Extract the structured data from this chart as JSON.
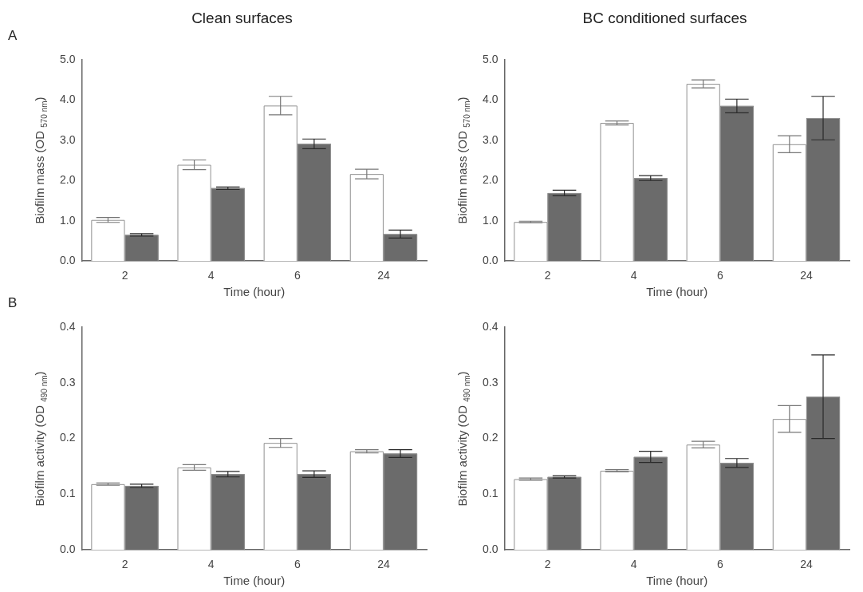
{
  "chart_data": [
    {
      "type": "bar",
      "title": "Clean surfaces",
      "xlabel": "Time (hour)",
      "ylabel": "Biofilm mass (OD $_{570 nm}$)",
      "annotations": [
        "A"
      ],
      "categories": [
        "2",
        "4",
        "6",
        "24"
      ],
      "series": [
        {
          "color": "#ffffff",
          "values": [
            1.02,
            2.39,
            3.86,
            2.16
          ],
          "errors": [
            0.06,
            0.12,
            0.23,
            0.12
          ]
        },
        {
          "color": "#6b6b6b",
          "values": [
            0.65,
            1.81,
            2.91,
            0.67
          ],
          "errors": [
            0.03,
            0.03,
            0.12,
            0.1
          ]
        }
      ],
      "ylim": [
        0,
        5
      ],
      "yticks": [
        {
          "value": 0,
          "label": "0.0"
        },
        {
          "value": 1,
          "label": "1.0"
        },
        {
          "value": 2,
          "label": "2.0"
        },
        {
          "value": 3,
          "label": "3.0"
        },
        {
          "value": 4,
          "label": "4.0"
        },
        {
          "value": 5,
          "label": "5.0"
        }
      ],
      "grid": false,
      "legend": false
    },
    {
      "type": "bar",
      "title": "BC conditioned surfaces",
      "xlabel": "Time (hour)",
      "ylabel": "Biofilm mass (OD $_{570 nm}$)",
      "categories": [
        "2",
        "4",
        "6",
        "24"
      ],
      "series": [
        {
          "color": "#ffffff",
          "values": [
            0.97,
            3.43,
            4.4,
            2.9
          ],
          "errors": [
            0.02,
            0.05,
            0.1,
            0.21
          ]
        },
        {
          "color": "#6b6b6b",
          "values": [
            1.69,
            2.06,
            3.85,
            3.55
          ],
          "errors": [
            0.07,
            0.06,
            0.17,
            0.54
          ]
        }
      ],
      "ylim": [
        0,
        5
      ],
      "yticks": [
        {
          "value": 0,
          "label": "0.0"
        },
        {
          "value": 1,
          "label": "1.0"
        },
        {
          "value": 2,
          "label": "2.0"
        },
        {
          "value": 3,
          "label": "3.0"
        },
        {
          "value": 4,
          "label": "4.0"
        },
        {
          "value": 5,
          "label": "5.0"
        }
      ],
      "grid": false,
      "legend": false
    },
    {
      "type": "bar",
      "xlabel": "Time (hour)",
      "ylabel": "Biofilm activity (OD $_{490 nm}$)",
      "annotations": [
        "B"
      ],
      "categories": [
        "2",
        "4",
        "6",
        "24"
      ],
      "series": [
        {
          "color": "#ffffff",
          "values": [
            0.118,
            0.148,
            0.192,
            0.177
          ],
          "errors": [
            0.002,
            0.005,
            0.008,
            0.003
          ]
        },
        {
          "color": "#6b6b6b",
          "values": [
            0.115,
            0.136,
            0.136,
            0.173
          ],
          "errors": [
            0.003,
            0.005,
            0.006,
            0.007
          ]
        }
      ],
      "ylim": [
        0,
        0.4
      ],
      "yticks": [
        {
          "value": 0,
          "label": "0.0"
        },
        0.1,
        0.2,
        0.3,
        0.4
      ],
      "grid": false,
      "legend": false
    },
    {
      "type": "bar",
      "xlabel": "Time (hour)",
      "ylabel": "Biofilm activity (OD $_{490 nm}$)",
      "categories": [
        "2",
        "4",
        "6",
        "24"
      ],
      "series": [
        {
          "color": "#ffffff",
          "values": [
            0.127,
            0.142,
            0.189,
            0.235
          ],
          "errors": [
            0.002,
            0.002,
            0.006,
            0.024
          ]
        },
        {
          "color": "#6b6b6b",
          "values": [
            0.131,
            0.167,
            0.156,
            0.275
          ],
          "errors": [
            0.002,
            0.01,
            0.008,
            0.075
          ]
        }
      ],
      "ylim": [
        0,
        0.4
      ],
      "yticks": [
        {
          "value": 0,
          "label": "0.0"
        },
        0.1,
        0.2,
        0.3,
        0.4
      ],
      "grid": false,
      "legend": false
    }
  ]
}
